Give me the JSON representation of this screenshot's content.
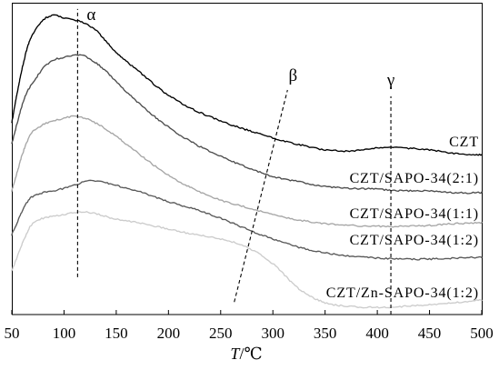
{
  "chart_data": {
    "type": "line",
    "xlabel": {
      "symbol": "T",
      "unit": "/℃"
    },
    "xlim": [
      50,
      500
    ],
    "ylim": [
      0,
      100
    ],
    "x_ticks": [
      50,
      100,
      150,
      200,
      250,
      300,
      350,
      400,
      450,
      500
    ],
    "grid": false,
    "legend": "inline",
    "x": [
      50,
      55,
      60,
      65,
      70,
      80,
      90,
      100,
      110,
      120,
      130,
      140,
      150,
      175,
      200,
      225,
      250,
      275,
      300,
      325,
      350,
      375,
      400,
      425,
      450,
      475,
      500
    ],
    "series": [
      {
        "name": "CZT",
        "color": "#000000",
        "values": [
          61.5,
          70.8,
          79.0,
          85.7,
          89.8,
          94.5,
          95.9,
          95.0,
          94.5,
          93.3,
          91.3,
          87.8,
          84.0,
          77.0,
          70.3,
          65.6,
          62.1,
          59.2,
          56.6,
          54.5,
          52.8,
          52.5,
          53.4,
          53.4,
          52.8,
          51.6,
          51.3
        ]
      },
      {
        "name": "CZT/SAPO-34(2:1)",
        "color": "#4d4d4d",
        "values": [
          54.8,
          61.2,
          67.3,
          71.7,
          74.1,
          79.0,
          81.6,
          82.5,
          83.1,
          82.8,
          80.8,
          78.1,
          74.6,
          66.8,
          60.1,
          54.8,
          50.7,
          47.2,
          44.3,
          42.6,
          41.1,
          40.5,
          40.2,
          39.7,
          39.7,
          39.1,
          39.1
        ]
      },
      {
        "name": "CZT/SAPO-34(1:1)",
        "color": "#a6a6a6",
        "values": [
          39.7,
          45.5,
          51.3,
          55.7,
          58.6,
          60.9,
          62.1,
          63.0,
          63.6,
          63.0,
          61.5,
          59.5,
          57.1,
          50.7,
          44.6,
          40.2,
          36.7,
          34.4,
          32.1,
          30.3,
          29.2,
          28.6,
          28.3,
          28.3,
          28.6,
          29.2,
          29.4
        ]
      },
      {
        "name": "CZT/SAPO-34(1:2)",
        "color": "#595959",
        "values": [
          25.7,
          29.4,
          33.2,
          36.2,
          37.9,
          39.1,
          39.7,
          40.5,
          41.4,
          42.6,
          42.9,
          42.3,
          41.4,
          39.1,
          36.2,
          33.8,
          30.9,
          27.4,
          24.2,
          21.6,
          19.8,
          18.7,
          18.1,
          17.8,
          17.8,
          18.1,
          18.4
        ]
      },
      {
        "name": "CZT/Zn-SAPO-34(1:2)",
        "color": "#cccccc",
        "values": [
          14.0,
          18.4,
          22.7,
          26.5,
          29.2,
          30.9,
          31.5,
          32.1,
          32.7,
          32.9,
          32.4,
          31.5,
          30.6,
          29.2,
          27.4,
          25.7,
          24.2,
          21.6,
          16.3,
          8.2,
          3.8,
          2.6,
          2.3,
          2.6,
          3.2,
          3.8,
          4.7
        ]
      }
    ],
    "annotations": [
      {
        "label": "α",
        "style": "dashed",
        "x": [
          113,
          113
        ],
        "y": [
          12,
          98
        ]
      },
      {
        "label": "β",
        "style": "dashed",
        "x": [
          263,
          314
        ],
        "y": [
          4,
          72
        ]
      },
      {
        "label": "γ",
        "style": "dashed",
        "x": [
          413,
          413
        ],
        "y": [
          0,
          70
        ]
      }
    ]
  }
}
